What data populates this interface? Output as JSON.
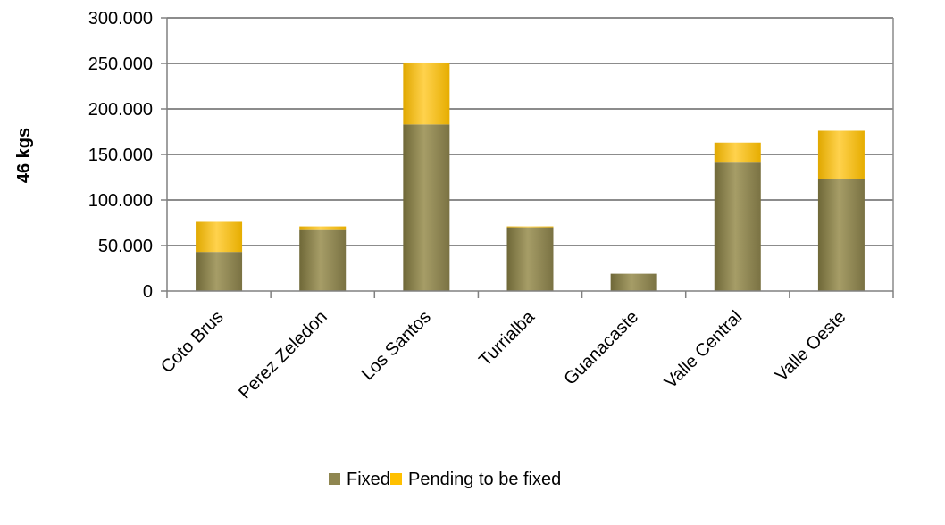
{
  "chart_data": {
    "type": "bar",
    "stacked": true,
    "categories": [
      "Coto Brus",
      "Perez Zeledon",
      "Los Santos",
      "Turrialba",
      "Guanacaste",
      "Valle Central",
      "Valle Oeste"
    ],
    "series": [
      {
        "name": "Fixed",
        "values": [
          43000,
          67000,
          183000,
          70000,
          19000,
          141000,
          123000
        ],
        "color": "#8f8650"
      },
      {
        "name": "Pending to be fixed",
        "values": [
          33000,
          4000,
          68000,
          1000,
          0,
          22000,
          53000
        ],
        "color": "#ffc000"
      }
    ],
    "ylabel": "46 kgs",
    "ylim": [
      0,
      300000
    ],
    "yticks": [
      0,
      50000,
      100000,
      150000,
      200000,
      250000,
      300000
    ],
    "ytick_labels": [
      "0",
      "50.000",
      "100.000",
      "150.000",
      "200.000",
      "250.000",
      "300.000"
    ],
    "grid": true,
    "legend_position": "bottom"
  }
}
